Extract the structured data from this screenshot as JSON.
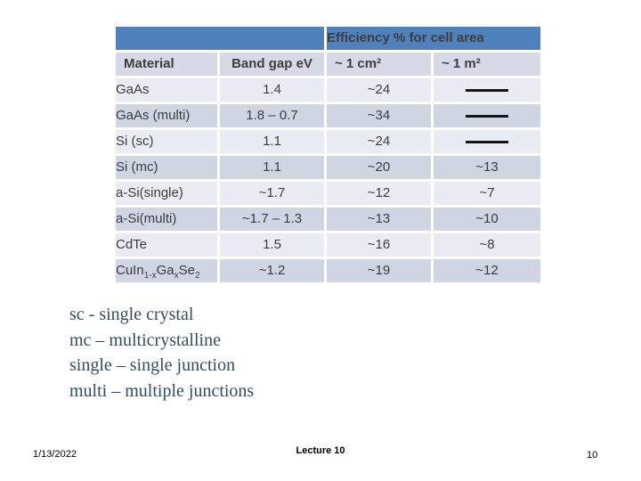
{
  "table": {
    "header_title": "Efficiency % for cell area",
    "columns": [
      "Material",
      "Band gap eV",
      "~ 1 cm²",
      "~ 1 m²"
    ],
    "rows": [
      {
        "cells": [
          "GaAs",
          "1.4",
          "~24",
          {
            "dash": true
          }
        ]
      },
      {
        "cells": [
          "GaAs (multi)",
          "1.8 – 0.7",
          "~34",
          {
            "dash": true
          }
        ]
      },
      {
        "cells": [
          "Si (sc)",
          "1.1",
          "~24",
          {
            "dash": true
          }
        ]
      },
      {
        "cells": [
          "Si (mc)",
          "1.1",
          "~20",
          "~13"
        ]
      },
      {
        "cells": [
          "a-Si(single)",
          "~1.7",
          "~12",
          "~7"
        ]
      },
      {
        "cells": [
          "a-Si(multi)",
          "~1.7 – 1.3",
          "~13",
          "~10"
        ]
      },
      {
        "cells": [
          "CdTe",
          "1.5",
          "~16",
          "~8"
        ]
      },
      {
        "cells": [
          {
            "parts": [
              {
                "t": "CuIn"
              },
              {
                "sub": "1-x"
              },
              {
                "t": "Ga"
              },
              {
                "sub": "x"
              },
              {
                "t": "Se"
              },
              {
                "sub": "2"
              }
            ]
          },
          "~1.2",
          "~19",
          "~12"
        ]
      }
    ],
    "colors": {
      "header_bg": "#4f81bd",
      "header_text": "#ffffff",
      "subheader_bg": "#d5dae6",
      "row_light": "#e9ecf3",
      "row_dark": "#cfd5e3",
      "table_text": "#3d3d3d",
      "dash": "#141414"
    }
  },
  "notes": [
    "sc - single crystal",
    "mc – multicrystalline",
    "single – single junction",
    "multi – multiple junctions"
  ],
  "notes_color": "#2f4d63",
  "footer": {
    "date": "1/13/2022",
    "lecture": "Lecture 10",
    "page_number": "10"
  }
}
